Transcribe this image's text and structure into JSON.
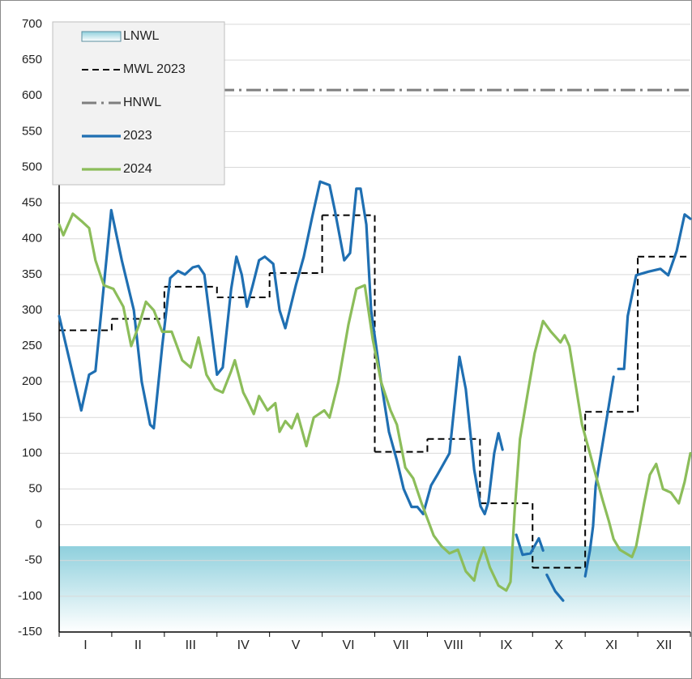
{
  "chart_data": {
    "type": "line",
    "categories": [
      "I",
      "II",
      "III",
      "IV",
      "V",
      "VI",
      "VII",
      "VIII",
      "IX",
      "X",
      "XI",
      "XII"
    ],
    "xlim": [
      0,
      12
    ],
    "xticks": [
      0,
      1,
      2,
      3,
      4,
      5,
      6,
      7,
      8,
      9,
      10,
      11,
      12
    ],
    "ylim": [
      -150,
      700
    ],
    "yticks": [
      -150,
      -100,
      -50,
      0,
      50,
      100,
      150,
      200,
      250,
      300,
      350,
      400,
      450,
      500,
      550,
      600,
      650,
      700
    ],
    "grid": true,
    "legend": "upper left",
    "series": [
      {
        "name": "LNWL",
        "type": "band",
        "value": -30,
        "color": "#8fd0dd"
      },
      {
        "name": "MWL 2023",
        "type": "step",
        "values": [
          272,
          288,
          333,
          318,
          352,
          433,
          102,
          120,
          30,
          -60,
          158,
          375
        ],
        "color": "#000000"
      },
      {
        "name": "HNWL",
        "type": "hline",
        "value": 608,
        "color": "#7f7f7f"
      },
      {
        "name": "2023",
        "color": "#1f6fb2",
        "x": [
          0,
          0.42,
          0.57,
          0.69,
          0.99,
          1.19,
          1.42,
          1.57,
          1.73,
          1.8,
          1.96,
          2.11,
          2.26,
          2.39,
          2.54,
          2.65,
          2.76,
          2.88,
          3.0,
          3.11,
          3.27,
          3.37,
          3.47,
          3.57,
          3.68,
          3.8,
          3.91,
          4.07,
          4.19,
          4.3,
          4.5,
          4.65,
          4.81,
          4.96,
          5.14,
          5.24,
          5.42,
          5.53,
          5.65,
          5.73,
          5.84,
          5.93,
          6.12,
          6.27,
          6.42,
          6.55,
          6.7,
          6.81,
          6.92,
          7.07,
          7.19,
          7.42,
          7.61,
          7.73,
          7.89,
          8.01,
          8.09,
          8.16,
          8.27,
          8.35,
          8.43,
          null,
          8.69,
          8.81,
          8.96,
          9.12,
          9.2,
          null,
          9.27,
          9.43,
          9.58,
          null,
          10.0,
          10.09,
          10.15,
          10.2,
          10.35,
          10.54,
          null,
          10.63,
          10.74,
          10.81,
          10.97,
          11.2,
          11.43,
          11.58,
          11.74,
          11.89,
          12
        ],
        "values": [
          292,
          160,
          210,
          215,
          440,
          370,
          300,
          200,
          140,
          135,
          250,
          345,
          355,
          350,
          360,
          362,
          350,
          280,
          210,
          220,
          330,
          375,
          350,
          305,
          335,
          370,
          375,
          365,
          300,
          275,
          335,
          375,
          430,
          480,
          475,
          440,
          370,
          380,
          470,
          470,
          420,
          300,
          200,
          130,
          90,
          50,
          25,
          25,
          15,
          55,
          70,
          100,
          235,
          190,
          77,
          26,
          15,
          32,
          100,
          128,
          105,
          null,
          -14,
          -42,
          -40,
          -19,
          -36,
          null,
          -70,
          -93,
          -106,
          null,
          -72,
          -36,
          -2,
          54,
          122,
          207,
          null,
          218,
          218,
          292,
          349,
          354,
          358,
          349,
          383,
          434,
          428
        ]
      },
      {
        "name": "2024",
        "color": "#8cbd5a",
        "x": [
          0,
          0.08,
          0.26,
          0.42,
          0.57,
          0.69,
          0.85,
          1.03,
          1.22,
          1.37,
          1.52,
          1.65,
          1.8,
          1.96,
          2.14,
          2.34,
          2.5,
          2.65,
          2.8,
          2.96,
          3.11,
          3.27,
          3.34,
          3.5,
          3.57,
          3.7,
          3.8,
          3.96,
          4.11,
          4.19,
          4.3,
          4.42,
          4.53,
          4.7,
          4.84,
          5.04,
          5.14,
          5.31,
          5.5,
          5.65,
          5.81,
          5.96,
          6.12,
          6.3,
          6.42,
          6.58,
          6.73,
          6.89,
          7.12,
          7.27,
          7.42,
          7.58,
          7.73,
          7.89,
          7.96,
          8.07,
          8.19,
          8.35,
          8.5,
          8.58,
          8.66,
          8.76,
          8.92,
          9.04,
          9.2,
          9.35,
          9.53,
          9.61,
          9.7,
          9.81,
          9.94,
          10.09,
          10.2,
          10.33,
          10.45,
          10.54,
          10.66,
          10.89,
          10.97,
          11.12,
          11.23,
          11.35,
          11.48,
          11.63,
          11.78,
          11.89,
          12
        ],
        "values": [
          420,
          405,
          435,
          425,
          415,
          370,
          335,
          330,
          305,
          250,
          280,
          312,
          300,
          270,
          270,
          230,
          220,
          262,
          210,
          190,
          185,
          215,
          230,
          185,
          175,
          155,
          180,
          160,
          170,
          130,
          145,
          135,
          155,
          110,
          150,
          160,
          150,
          200,
          280,
          330,
          335,
          260,
          200,
          160,
          140,
          80,
          65,
          30,
          -15,
          -30,
          -40,
          -35,
          -65,
          -78,
          -55,
          -32,
          -60,
          -85,
          -92,
          -80,
          20,
          120,
          190,
          240,
          285,
          270,
          255,
          265,
          250,
          200,
          140,
          100,
          70,
          35,
          5,
          -20,
          -35,
          -45,
          -30,
          30,
          70,
          85,
          50,
          45,
          30,
          60,
          100
        ]
      }
    ]
  }
}
